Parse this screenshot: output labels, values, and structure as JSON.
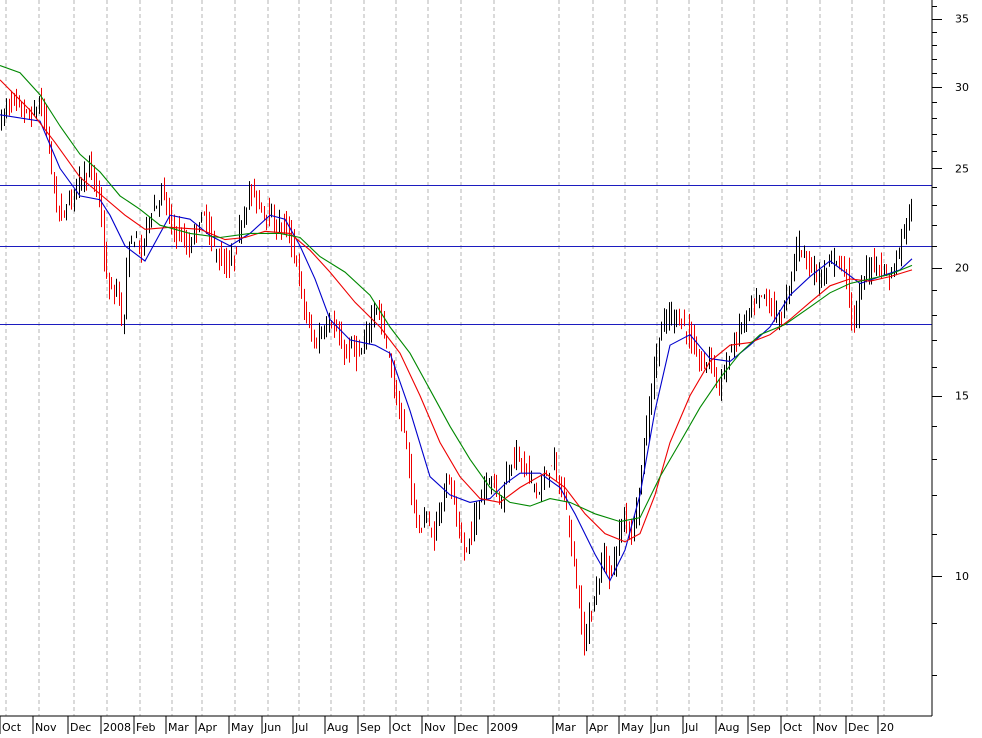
{
  "chart_data": {
    "type": "ohlc",
    "yscale": "log",
    "ylim": [
      7.3,
      36.5
    ],
    "y_ticks": [
      "35",
      "30",
      "25",
      "20",
      "15",
      "10"
    ],
    "y_tick_values": [
      35,
      30,
      25,
      20,
      15,
      10
    ],
    "x_tick_labels": [
      "Oct",
      "Nov",
      "Dec",
      "2008",
      "Feb",
      "Mar",
      "Apr",
      "May",
      "Jun",
      "Jul",
      "Aug",
      "Sep",
      "Oct",
      "Nov",
      "Dec",
      "2009",
      "Mar",
      "Apr",
      "May",
      "Jun",
      "Jul",
      "Aug",
      "Sep",
      "Oct",
      "Nov",
      "Dec",
      "20"
    ],
    "x_tick_positions": [
      0,
      33,
      68,
      101,
      134,
      166,
      196,
      229,
      262,
      293,
      325,
      358,
      390,
      422,
      455,
      488,
      553,
      587,
      619,
      651,
      683,
      716,
      748,
      781,
      814,
      846,
      878
    ],
    "grid": "vertical dashed",
    "horizontal_levels": [
      24.1,
      21.0,
      17.6
    ],
    "up_color": "#000000",
    "down_color": "#ee0000",
    "price_anchors": [
      [
        0,
        27.8
      ],
      [
        10,
        29.2
      ],
      [
        20,
        28.5
      ],
      [
        30,
        28.0
      ],
      [
        40,
        29.0
      ],
      [
        48,
        26.5
      ],
      [
        55,
        23.0
      ],
      [
        62,
        22.5
      ],
      [
        70,
        23.5
      ],
      [
        80,
        24.5
      ],
      [
        90,
        25.0
      ],
      [
        100,
        23.0
      ],
      [
        105,
        19.5
      ],
      [
        112,
        18.8
      ],
      [
        118,
        19.2
      ],
      [
        122,
        17.0
      ],
      [
        128,
        21.0
      ],
      [
        135,
        21.5
      ],
      [
        140,
        20.5
      ],
      [
        148,
        22.5
      ],
      [
        155,
        23.0
      ],
      [
        162,
        23.8
      ],
      [
        170,
        22.0
      ],
      [
        180,
        21.5
      ],
      [
        188,
        20.8
      ],
      [
        196,
        22.0
      ],
      [
        205,
        22.5
      ],
      [
        212,
        21.0
      ],
      [
        220,
        20.3
      ],
      [
        228,
        20.0
      ],
      [
        235,
        20.8
      ],
      [
        242,
        22.5
      ],
      [
        250,
        23.8
      ],
      [
        260,
        23.0
      ],
      [
        268,
        22.5
      ],
      [
        275,
        22.0
      ],
      [
        285,
        22.0
      ],
      [
        295,
        20.5
      ],
      [
        302,
        18.5
      ],
      [
        308,
        17.5
      ],
      [
        315,
        16.8
      ],
      [
        322,
        17.5
      ],
      [
        330,
        17.8
      ],
      [
        338,
        17.0
      ],
      [
        345,
        16.5
      ],
      [
        352,
        16.8
      ],
      [
        360,
        16.3
      ],
      [
        368,
        17.5
      ],
      [
        375,
        18.5
      ],
      [
        382,
        17.5
      ],
      [
        390,
        16.0
      ],
      [
        398,
        14.5
      ],
      [
        405,
        13.5
      ],
      [
        412,
        12.0
      ],
      [
        418,
        11.0
      ],
      [
        425,
        11.5
      ],
      [
        432,
        10.8
      ],
      [
        438,
        11.5
      ],
      [
        445,
        12.5
      ],
      [
        452,
        12.0
      ],
      [
        458,
        11.0
      ],
      [
        465,
        10.5
      ],
      [
        472,
        11.2
      ],
      [
        480,
        12.0
      ],
      [
        487,
        12.5
      ],
      [
        494,
        12.3
      ],
      [
        500,
        11.8
      ],
      [
        508,
        12.8
      ],
      [
        515,
        13.2
      ],
      [
        522,
        12.8
      ],
      [
        530,
        12.5
      ],
      [
        538,
        12.0
      ],
      [
        545,
        12.5
      ],
      [
        552,
        13.0
      ],
      [
        558,
        12.3
      ],
      [
        565,
        11.8
      ],
      [
        572,
        10.5
      ],
      [
        578,
        9.5
      ],
      [
        583,
        8.6
      ],
      [
        590,
        9.2
      ],
      [
        597,
        9.8
      ],
      [
        603,
        10.5
      ],
      [
        610,
        10.0
      ],
      [
        617,
        10.8
      ],
      [
        624,
        11.5
      ],
      [
        631,
        11.0
      ],
      [
        638,
        12.0
      ],
      [
        645,
        13.8
      ],
      [
        652,
        15.5
      ],
      [
        658,
        17.0
      ],
      [
        665,
        17.8
      ],
      [
        672,
        18.0
      ],
      [
        680,
        17.8
      ],
      [
        688,
        17.2
      ],
      [
        695,
        16.5
      ],
      [
        702,
        16.0
      ],
      [
        710,
        16.5
      ],
      [
        718,
        15.2
      ],
      [
        725,
        16.0
      ],
      [
        732,
        16.8
      ],
      [
        740,
        17.5
      ],
      [
        748,
        18.0
      ],
      [
        756,
        18.5
      ],
      [
        764,
        18.8
      ],
      [
        772,
        18.2
      ],
      [
        780,
        17.8
      ],
      [
        788,
        19.0
      ],
      [
        796,
        21.0
      ],
      [
        803,
        20.8
      ],
      [
        810,
        20.0
      ],
      [
        818,
        19.5
      ],
      [
        826,
        19.8
      ],
      [
        834,
        20.5
      ],
      [
        840,
        20.2
      ],
      [
        846,
        19.8
      ],
      [
        851,
        17.8
      ],
      [
        856,
        18.0
      ],
      [
        862,
        19.5
      ],
      [
        868,
        20.0
      ],
      [
        875,
        20.3
      ],
      [
        882,
        20.0
      ],
      [
        888,
        19.5
      ],
      [
        895,
        20.2
      ],
      [
        902,
        21.5
      ],
      [
        907,
        22.5
      ],
      [
        912,
        23.0
      ]
    ],
    "moving_averages": [
      {
        "color": "#0000cc",
        "values": [
          [
            0,
            28.2
          ],
          [
            40,
            27.8
          ],
          [
            60,
            25.0
          ],
          [
            80,
            23.5
          ],
          [
            100,
            23.3
          ],
          [
            110,
            22.5
          ],
          [
            125,
            21.0
          ],
          [
            145,
            20.3
          ],
          [
            170,
            22.5
          ],
          [
            190,
            22.3
          ],
          [
            210,
            21.5
          ],
          [
            230,
            21.0
          ],
          [
            250,
            21.6
          ],
          [
            270,
            22.5
          ],
          [
            285,
            22.3
          ],
          [
            300,
            21.0
          ],
          [
            315,
            19.5
          ],
          [
            330,
            17.8
          ],
          [
            350,
            17.0
          ],
          [
            375,
            16.8
          ],
          [
            390,
            16.5
          ],
          [
            410,
            14.5
          ],
          [
            430,
            12.5
          ],
          [
            450,
            12.0
          ],
          [
            470,
            11.8
          ],
          [
            490,
            11.9
          ],
          [
            505,
            12.3
          ],
          [
            520,
            12.6
          ],
          [
            540,
            12.6
          ],
          [
            560,
            12.2
          ],
          [
            575,
            11.5
          ],
          [
            595,
            10.5
          ],
          [
            610,
            9.9
          ],
          [
            625,
            10.6
          ],
          [
            640,
            12.0
          ],
          [
            655,
            14.5
          ],
          [
            670,
            16.8
          ],
          [
            690,
            17.2
          ],
          [
            710,
            16.3
          ],
          [
            730,
            16.2
          ],
          [
            750,
            16.8
          ],
          [
            770,
            17.5
          ],
          [
            790,
            18.8
          ],
          [
            810,
            19.6
          ],
          [
            830,
            20.3
          ],
          [
            845,
            19.8
          ],
          [
            860,
            19.3
          ],
          [
            880,
            19.6
          ],
          [
            900,
            19.9
          ],
          [
            912,
            20.4
          ]
        ]
      },
      {
        "color": "#ee0000",
        "values": [
          [
            0,
            30.5
          ],
          [
            30,
            28.5
          ],
          [
            55,
            26.5
          ],
          [
            80,
            24.5
          ],
          [
            100,
            23.6
          ],
          [
            125,
            22.5
          ],
          [
            145,
            21.8
          ],
          [
            170,
            21.9
          ],
          [
            200,
            21.8
          ],
          [
            225,
            21.3
          ],
          [
            245,
            21.4
          ],
          [
            265,
            21.7
          ],
          [
            290,
            21.6
          ],
          [
            310,
            20.8
          ],
          [
            330,
            19.8
          ],
          [
            355,
            18.5
          ],
          [
            380,
            17.5
          ],
          [
            400,
            16.5
          ],
          [
            420,
            15.0
          ],
          [
            440,
            13.5
          ],
          [
            460,
            12.5
          ],
          [
            480,
            11.9
          ],
          [
            500,
            11.8
          ],
          [
            520,
            12.2
          ],
          [
            545,
            12.6
          ],
          [
            565,
            12.2
          ],
          [
            585,
            11.5
          ],
          [
            605,
            11.0
          ],
          [
            625,
            10.8
          ],
          [
            640,
            11.0
          ],
          [
            655,
            12.0
          ],
          [
            670,
            13.5
          ],
          [
            690,
            15.0
          ],
          [
            710,
            16.2
          ],
          [
            730,
            16.8
          ],
          [
            750,
            16.9
          ],
          [
            770,
            17.2
          ],
          [
            790,
            17.8
          ],
          [
            810,
            18.5
          ],
          [
            830,
            19.2
          ],
          [
            850,
            19.5
          ],
          [
            870,
            19.4
          ],
          [
            890,
            19.6
          ],
          [
            912,
            19.9
          ]
        ]
      },
      {
        "color": "#008800",
        "values": [
          [
            0,
            31.5
          ],
          [
            20,
            31.0
          ],
          [
            40,
            29.5
          ],
          [
            60,
            27.5
          ],
          [
            80,
            25.8
          ],
          [
            100,
            24.8
          ],
          [
            120,
            23.5
          ],
          [
            140,
            22.8
          ],
          [
            160,
            22.0
          ],
          [
            190,
            21.6
          ],
          [
            220,
            21.4
          ],
          [
            250,
            21.6
          ],
          [
            280,
            21.6
          ],
          [
            300,
            21.4
          ],
          [
            320,
            20.5
          ],
          [
            345,
            19.8
          ],
          [
            370,
            18.8
          ],
          [
            390,
            17.5
          ],
          [
            410,
            16.5
          ],
          [
            430,
            15.2
          ],
          [
            450,
            14.0
          ],
          [
            470,
            13.0
          ],
          [
            490,
            12.2
          ],
          [
            510,
            11.8
          ],
          [
            530,
            11.7
          ],
          [
            550,
            11.9
          ],
          [
            570,
            11.8
          ],
          [
            595,
            11.5
          ],
          [
            620,
            11.3
          ],
          [
            640,
            11.4
          ],
          [
            660,
            12.5
          ],
          [
            680,
            13.5
          ],
          [
            700,
            14.6
          ],
          [
            720,
            15.6
          ],
          [
            740,
            16.5
          ],
          [
            760,
            17.2
          ],
          [
            785,
            17.6
          ],
          [
            810,
            18.3
          ],
          [
            830,
            18.9
          ],
          [
            850,
            19.3
          ],
          [
            870,
            19.5
          ],
          [
            890,
            19.7
          ],
          [
            912,
            20.1
          ]
        ]
      }
    ]
  }
}
